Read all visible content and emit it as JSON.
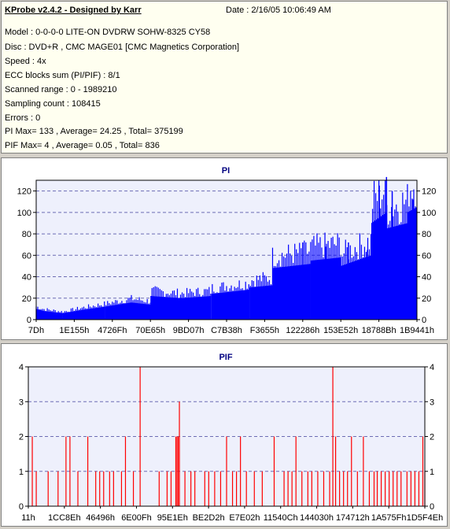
{
  "header": {
    "title": "KProbe v2.4.2 - Designed by Karr",
    "date": "Date : 2/16/05 10:06:49 AM",
    "lines": [
      "Model : 0-0-0-0 LITE-ON DVDRW SOHW-8325  CY58",
      "Disc : DVD+R , CMC MAGE01 [CMC Magnetics Corporation]",
      "Speed : 4x",
      "ECC blocks sum (PI/PIF) : 8/1",
      "Scanned range : 0 - 1989210",
      "Sampling count : 108415",
      "Errors : 0",
      "PI Max= 133 , Average= 24.25 , Total= 375199",
      "PIF Max= 4 , Average= 0.05 , Total= 836"
    ]
  },
  "chart_data": [
    {
      "type": "area",
      "title": "PI",
      "ylim": [
        0,
        130
      ],
      "yticks": [
        0,
        20,
        40,
        60,
        80,
        100,
        120
      ],
      "xticklabels": [
        "7Dh",
        "1E155h",
        "4726Fh",
        "70E65h",
        "9BD07h",
        "C7B38h",
        "F3655h",
        "122286h",
        "153E52h",
        "18788Bh",
        "1B9441h"
      ],
      "grid": true,
      "color": "#0000ff",
      "segments": [
        {
          "x": [
            0.0,
            0.02
          ],
          "y": [
            10,
            8
          ]
        },
        {
          "x": [
            0.02,
            0.07
          ],
          "y": [
            8,
            6
          ]
        },
        {
          "x": [
            0.07,
            0.12
          ],
          "y": [
            6,
            9
          ]
        },
        {
          "x": [
            0.12,
            0.18
          ],
          "y": [
            9,
            12
          ]
        },
        {
          "x": [
            0.18,
            0.25
          ],
          "y": [
            12,
            16
          ]
        },
        {
          "x": [
            0.25,
            0.3
          ],
          "y": [
            16,
            14
          ]
        },
        {
          "x": [
            0.3,
            0.38
          ],
          "y": [
            22,
            20
          ]
        },
        {
          "x": [
            0.38,
            0.46
          ],
          "y": [
            20,
            22
          ]
        },
        {
          "x": [
            0.46,
            0.56
          ],
          "y": [
            24,
            28
          ]
        },
        {
          "x": [
            0.56,
            0.62
          ],
          "y": [
            30,
            32
          ]
        },
        {
          "x": [
            0.62,
            0.72
          ],
          "y": [
            48,
            52
          ]
        },
        {
          "x": [
            0.72,
            0.8
          ],
          "y": [
            55,
            58
          ]
        },
        {
          "x": [
            0.8,
            0.88
          ],
          "y": [
            50,
            60
          ]
        },
        {
          "x": [
            0.88,
            0.92
          ],
          "y": [
            90,
            100
          ]
        },
        {
          "x": [
            0.92,
            0.975
          ],
          "y": [
            85,
            90
          ]
        },
        {
          "x": [
            0.975,
            1.0
          ],
          "y": [
            100,
            105
          ]
        }
      ],
      "peaks": [
        {
          "x": 0.7,
          "y": 72
        },
        {
          "x": 0.76,
          "y": 68
        },
        {
          "x": 0.82,
          "y": 72
        },
        {
          "x": 0.87,
          "y": 65
        },
        {
          "x": 0.901,
          "y": 125
        },
        {
          "x": 0.92,
          "y": 133
        },
        {
          "x": 0.935,
          "y": 120
        },
        {
          "x": 0.99,
          "y": 112
        }
      ]
    },
    {
      "type": "bar",
      "title": "PIF",
      "ylim": [
        0,
        4
      ],
      "yticks": [
        0,
        1,
        2,
        3,
        4
      ],
      "xticklabels": [
        "11h",
        "1CC8Eh",
        "46496h",
        "6E00Fh",
        "95E1Eh",
        "BE2D2h",
        "E7E02h",
        "11540Ch",
        "144030h",
        "174712h",
        "1A575Fh",
        "1D5F4Eh"
      ],
      "grid": true,
      "color": "#ff0000",
      "bars": [
        {
          "x": 0.01,
          "v": 2
        },
        {
          "x": 0.02,
          "v": 1
        },
        {
          "x": 0.05,
          "v": 1
        },
        {
          "x": 0.075,
          "v": 1
        },
        {
          "x": 0.095,
          "v": 2
        },
        {
          "x": 0.105,
          "v": 2
        },
        {
          "x": 0.125,
          "v": 1
        },
        {
          "x": 0.15,
          "v": 2
        },
        {
          "x": 0.17,
          "v": 1
        },
        {
          "x": 0.18,
          "v": 1
        },
        {
          "x": 0.19,
          "v": 1
        },
        {
          "x": 0.205,
          "v": 1
        },
        {
          "x": 0.215,
          "v": 1
        },
        {
          "x": 0.235,
          "v": 1
        },
        {
          "x": 0.245,
          "v": 2
        },
        {
          "x": 0.265,
          "v": 1
        },
        {
          "x": 0.282,
          "v": 4
        },
        {
          "x": 0.33,
          "v": 1
        },
        {
          "x": 0.35,
          "v": 1
        },
        {
          "x": 0.36,
          "v": 1
        },
        {
          "x": 0.372,
          "v": 2
        },
        {
          "x": 0.375,
          "v": 2
        },
        {
          "x": 0.378,
          "v": 2
        },
        {
          "x": 0.381,
          "v": 3
        },
        {
          "x": 0.395,
          "v": 1
        },
        {
          "x": 0.41,
          "v": 1
        },
        {
          "x": 0.42,
          "v": 1
        },
        {
          "x": 0.445,
          "v": 1
        },
        {
          "x": 0.455,
          "v": 1
        },
        {
          "x": 0.47,
          "v": 1
        },
        {
          "x": 0.485,
          "v": 1
        },
        {
          "x": 0.5,
          "v": 2
        },
        {
          "x": 0.515,
          "v": 1
        },
        {
          "x": 0.525,
          "v": 1
        },
        {
          "x": 0.535,
          "v": 2
        },
        {
          "x": 0.55,
          "v": 1
        },
        {
          "x": 0.57,
          "v": 1
        },
        {
          "x": 0.59,
          "v": 1
        },
        {
          "x": 0.62,
          "v": 2
        },
        {
          "x": 0.645,
          "v": 1
        },
        {
          "x": 0.655,
          "v": 1
        },
        {
          "x": 0.665,
          "v": 1
        },
        {
          "x": 0.675,
          "v": 2
        },
        {
          "x": 0.69,
          "v": 1
        },
        {
          "x": 0.705,
          "v": 1
        },
        {
          "x": 0.715,
          "v": 1
        },
        {
          "x": 0.73,
          "v": 1
        },
        {
          "x": 0.745,
          "v": 1
        },
        {
          "x": 0.76,
          "v": 1
        },
        {
          "x": 0.768,
          "v": 4
        },
        {
          "x": 0.775,
          "v": 2
        },
        {
          "x": 0.785,
          "v": 1
        },
        {
          "x": 0.795,
          "v": 1
        },
        {
          "x": 0.805,
          "v": 1
        },
        {
          "x": 0.815,
          "v": 2
        },
        {
          "x": 0.83,
          "v": 1
        },
        {
          "x": 0.845,
          "v": 2
        },
        {
          "x": 0.86,
          "v": 1
        },
        {
          "x": 0.872,
          "v": 1
        },
        {
          "x": 0.88,
          "v": 1
        },
        {
          "x": 0.89,
          "v": 1
        },
        {
          "x": 0.9,
          "v": 1
        },
        {
          "x": 0.91,
          "v": 1
        },
        {
          "x": 0.92,
          "v": 1
        },
        {
          "x": 0.93,
          "v": 1
        },
        {
          "x": 0.94,
          "v": 1
        },
        {
          "x": 0.955,
          "v": 1
        },
        {
          "x": 0.965,
          "v": 1
        },
        {
          "x": 0.975,
          "v": 1
        },
        {
          "x": 0.985,
          "v": 1
        },
        {
          "x": 0.995,
          "v": 2
        },
        {
          "x": 1.0,
          "v": 1
        }
      ]
    }
  ]
}
